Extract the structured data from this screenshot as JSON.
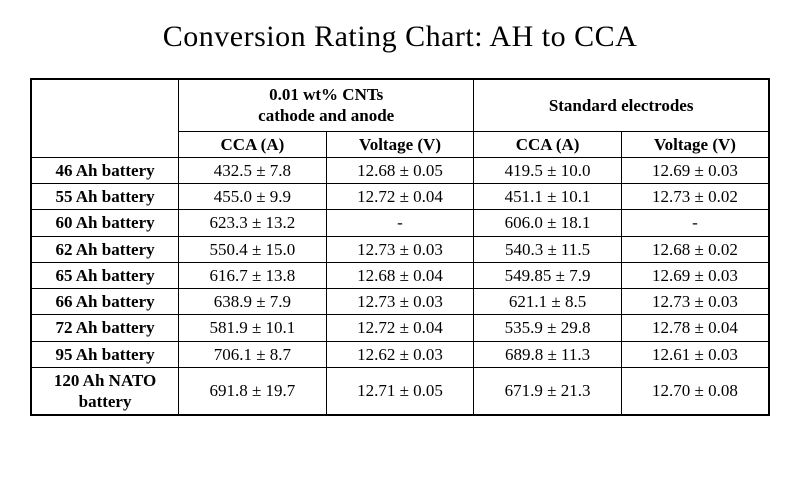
{
  "title": "Conversion Rating Chart: AH to CCA",
  "table": {
    "group_headers": {
      "cnt": "0.01 wt% CNTs\ncathode and anode",
      "std": "Standard electrodes"
    },
    "sub_headers": {
      "cca": "CCA (A)",
      "voltage": "Voltage (V)"
    },
    "rows": [
      {
        "label": "46 Ah battery",
        "cnt_cca": "432.5 ± 7.8",
        "cnt_v": "12.68 ± 0.05",
        "std_cca": "419.5 ± 10.0",
        "std_v": "12.69 ± 0.03"
      },
      {
        "label": "55 Ah battery",
        "cnt_cca": "455.0 ± 9.9",
        "cnt_v": "12.72 ± 0.04",
        "std_cca": "451.1 ± 10.1",
        "std_v": "12.73 ± 0.02"
      },
      {
        "label": "60 Ah battery",
        "cnt_cca": "623.3 ± 13.2",
        "cnt_v": "-",
        "std_cca": "606.0 ± 18.1",
        "std_v": "-"
      },
      {
        "label": "62 Ah battery",
        "cnt_cca": "550.4 ± 15.0",
        "cnt_v": "12.73 ± 0.03",
        "std_cca": "540.3 ± 11.5",
        "std_v": "12.68 ± 0.02"
      },
      {
        "label": "65 Ah battery",
        "cnt_cca": "616.7 ± 13.8",
        "cnt_v": "12.68 ± 0.04",
        "std_cca": "549.85 ± 7.9",
        "std_v": "12.69 ± 0.03"
      },
      {
        "label": "66 Ah battery",
        "cnt_cca": "638.9 ± 7.9",
        "cnt_v": "12.73 ± 0.03",
        "std_cca": "621.1 ± 8.5",
        "std_v": "12.73 ± 0.03"
      },
      {
        "label": "72 Ah battery",
        "cnt_cca": "581.9 ± 10.1",
        "cnt_v": "12.72 ± 0.04",
        "std_cca": "535.9 ± 29.8",
        "std_v": "12.78 ± 0.04"
      },
      {
        "label": "95 Ah battery",
        "cnt_cca": "706.1 ± 8.7",
        "cnt_v": "12.62 ± 0.03",
        "std_cca": "689.8 ± 11.3",
        "std_v": "12.61 ± 0.03"
      },
      {
        "label": "120 Ah NATO\nbattery",
        "cnt_cca": "691.8 ± 19.7",
        "cnt_v": "12.71 ± 0.05",
        "std_cca": "671.9 ± 21.3",
        "std_v": "12.70 ± 0.08"
      }
    ],
    "colors": {
      "background": "#ffffff",
      "border": "#000000",
      "text": "#000000"
    },
    "font": {
      "title_size_pt": 30,
      "cell_size_pt": 17,
      "title_family": "Georgia",
      "body_family": "Times New Roman"
    }
  }
}
